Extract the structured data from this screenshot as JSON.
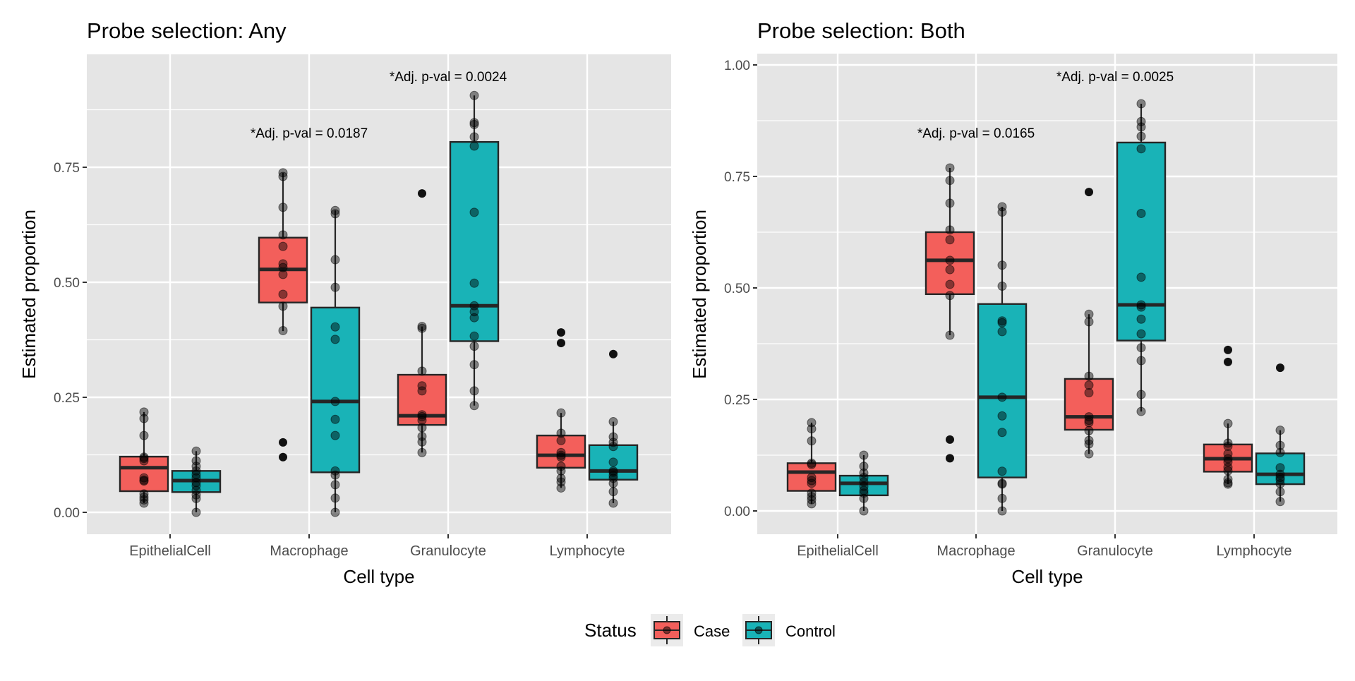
{
  "chart_data": [
    {
      "type": "box",
      "title": "Probe selection: Any",
      "xlabel": "Cell type",
      "ylabel": "Estimated proportion",
      "ylim": [
        -0.05,
        1.0
      ],
      "yticks": [
        0.0,
        0.25,
        0.5,
        0.75
      ],
      "ytick_labels": [
        "0.00",
        "0.25",
        "0.50",
        "0.75"
      ],
      "grid": true,
      "categories": [
        "EpithelialCell",
        "Macrophage",
        "Granulocyte",
        "Lymphocyte"
      ],
      "annotations": [
        {
          "text": "*Adj. p-val = 0.0187",
          "category": "Macrophage",
          "y": 0.825
        },
        {
          "text": "*Adj. p-val = 0.0024",
          "category": "Granulocyte",
          "y": 0.948
        }
      ],
      "series": [
        {
          "name": "Case",
          "boxes": [
            {
              "category": "EpithelialCell",
              "q1": 0.046,
              "median": 0.097,
              "q3": 0.121,
              "whisker_low": 0.02,
              "whisker_high": 0.218,
              "outliers": [],
              "points": [
                0.218,
                0.204,
                0.167,
                0.12,
                0.117,
                0.112,
                0.075,
                0.07,
                0.068,
                0.04,
                0.033,
                0.027,
                0.02
              ]
            },
            {
              "category": "Macrophage",
              "q1": 0.456,
              "median": 0.528,
              "q3": 0.597,
              "whisker_low": 0.394,
              "whisker_high": 0.738,
              "outliers": [
                0.152,
                0.12
              ],
              "points": [
                0.738,
                0.73,
                0.663,
                0.603,
                0.578,
                0.54,
                0.532,
                0.517,
                0.474,
                0.448,
                0.395
              ]
            },
            {
              "category": "Granulocyte",
              "q1": 0.19,
              "median": 0.21,
              "q3": 0.299,
              "whisker_low": 0.13,
              "whisker_high": 0.404,
              "outliers": [
                0.693
              ],
              "points": [
                0.404,
                0.4,
                0.307,
                0.275,
                0.264,
                0.212,
                0.208,
                0.2,
                0.184,
                0.165,
                0.153,
                0.13
              ]
            },
            {
              "category": "Lymphocyte",
              "q1": 0.097,
              "median": 0.124,
              "q3": 0.167,
              "whisker_low": 0.053,
              "whisker_high": 0.216,
              "outliers": [
                0.391,
                0.368
              ],
              "points": [
                0.216,
                0.172,
                0.156,
                0.13,
                0.124,
                0.12,
                0.1,
                0.09,
                0.074,
                0.066,
                0.053
              ]
            }
          ]
        },
        {
          "name": "Control",
          "boxes": [
            {
              "category": "EpithelialCell",
              "q1": 0.044,
              "median": 0.069,
              "q3": 0.09,
              "whisker_low": 0.0,
              "whisker_high": 0.133,
              "outliers": [],
              "points": [
                0.133,
                0.112,
                0.1,
                0.09,
                0.082,
                0.075,
                0.065,
                0.058,
                0.048,
                0.038,
                0.03,
                0.0
              ]
            },
            {
              "category": "Macrophage",
              "q1": 0.087,
              "median": 0.241,
              "q3": 0.445,
              "whisker_low": 0.0,
              "whisker_high": 0.656,
              "outliers": [],
              "points": [
                0.656,
                0.649,
                0.549,
                0.489,
                0.403,
                0.376,
                0.241,
                0.202,
                0.167,
                0.09,
                0.081,
                0.06,
                0.031,
                0.0
              ]
            },
            {
              "category": "Granulocyte",
              "q1": 0.372,
              "median": 0.449,
              "q3": 0.805,
              "whisker_low": 0.232,
              "whisker_high": 0.906,
              "outliers": [],
              "points": [
                0.906,
                0.847,
                0.843,
                0.816,
                0.796,
                0.652,
                0.498,
                0.449,
                0.436,
                0.423,
                0.383,
                0.361,
                0.321,
                0.264,
                0.232
              ]
            },
            {
              "category": "Lymphocyte",
              "q1": 0.071,
              "median": 0.09,
              "q3": 0.146,
              "whisker_low": 0.02,
              "whisker_high": 0.197,
              "outliers": [
                0.344
              ],
              "points": [
                0.197,
                0.164,
                0.152,
                0.143,
                0.109,
                0.09,
                0.087,
                0.08,
                0.074,
                0.063,
                0.045,
                0.02
              ]
            }
          ]
        }
      ]
    },
    {
      "type": "box",
      "title": "Probe selection: Both",
      "xlabel": "Cell type",
      "ylabel": "Estimated proportion",
      "ylim": [
        -0.05,
        1.025
      ],
      "yticks": [
        0.0,
        0.25,
        0.5,
        0.75,
        1.0
      ],
      "ytick_labels": [
        "0.00",
        "0.25",
        "0.50",
        "0.75",
        "1.00"
      ],
      "grid": true,
      "categories": [
        "EpithelialCell",
        "Macrophage",
        "Granulocyte",
        "Lymphocyte"
      ],
      "annotations": [
        {
          "text": "*Adj. p-val = 0.0165",
          "category": "Macrophage",
          "y": 0.848
        },
        {
          "text": "*Adj. p-val = 0.0025",
          "category": "Granulocyte",
          "y": 0.975
        }
      ],
      "series": [
        {
          "name": "Case",
          "boxes": [
            {
              "category": "EpithelialCell",
              "q1": 0.045,
              "median": 0.087,
              "q3": 0.107,
              "whisker_low": 0.016,
              "whisker_high": 0.198,
              "outliers": [],
              "points": [
                0.198,
                0.184,
                0.157,
                0.107,
                0.104,
                0.075,
                0.068,
                0.062,
                0.04,
                0.032,
                0.025,
                0.016
              ]
            },
            {
              "category": "Macrophage",
              "q1": 0.486,
              "median": 0.562,
              "q3": 0.625,
              "whisker_low": 0.394,
              "whisker_high": 0.769,
              "outliers": [
                0.16,
                0.118
              ],
              "points": [
                0.769,
                0.741,
                0.69,
                0.63,
                0.608,
                0.562,
                0.541,
                0.508,
                0.483,
                0.394
              ]
            },
            {
              "category": "Granulocyte",
              "q1": 0.182,
              "median": 0.211,
              "q3": 0.296,
              "whisker_low": 0.128,
              "whisker_high": 0.441,
              "outliers": [
                0.715
              ],
              "points": [
                0.441,
                0.424,
                0.302,
                0.282,
                0.265,
                0.211,
                0.203,
                0.198,
                0.18,
                0.158,
                0.15,
                0.128
              ]
            },
            {
              "category": "Lymphocyte",
              "q1": 0.088,
              "median": 0.117,
              "q3": 0.149,
              "whisker_low": 0.06,
              "whisker_high": 0.196,
              "outliers": [
                0.361,
                0.334
              ],
              "points": [
                0.196,
                0.152,
                0.145,
                0.128,
                0.117,
                0.11,
                0.098,
                0.09,
                0.071,
                0.063,
                0.06
              ]
            }
          ]
        },
        {
          "name": "Control",
          "boxes": [
            {
              "category": "EpithelialCell",
              "q1": 0.035,
              "median": 0.062,
              "q3": 0.079,
              "whisker_low": 0.0,
              "whisker_high": 0.125,
              "outliers": [],
              "points": [
                0.125,
                0.1,
                0.085,
                0.075,
                0.065,
                0.055,
                0.046,
                0.04,
                0.028,
                0.0
              ]
            },
            {
              "category": "Macrophage",
              "q1": 0.075,
              "median": 0.255,
              "q3": 0.464,
              "whisker_low": 0.0,
              "whisker_high": 0.682,
              "outliers": [],
              "points": [
                0.682,
                0.67,
                0.551,
                0.504,
                0.426,
                0.422,
                0.402,
                0.255,
                0.213,
                0.176,
                0.089,
                0.062,
                0.06,
                0.028,
                0.0
              ]
            },
            {
              "category": "Granulocyte",
              "q1": 0.382,
              "median": 0.462,
              "q3": 0.826,
              "whisker_low": 0.223,
              "whisker_high": 0.913,
              "outliers": [],
              "points": [
                0.913,
                0.873,
                0.861,
                0.84,
                0.812,
                0.667,
                0.524,
                0.462,
                0.457,
                0.43,
                0.397,
                0.366,
                0.337,
                0.261,
                0.223
              ]
            },
            {
              "category": "Lymphocyte",
              "q1": 0.06,
              "median": 0.082,
              "q3": 0.129,
              "whisker_low": 0.021,
              "whisker_high": 0.181,
              "outliers": [
                0.321
              ],
              "points": [
                0.181,
                0.147,
                0.131,
                0.097,
                0.082,
                0.075,
                0.07,
                0.061,
                0.043,
                0.021
              ]
            }
          ]
        }
      ]
    }
  ],
  "legend": {
    "title": "Status",
    "placement": "bottom",
    "items": [
      {
        "label": "Case",
        "color": "#F8766D"
      },
      {
        "label": "Control",
        "color": "#00BFC4"
      }
    ]
  },
  "colors": {
    "Case": "#F35F5B",
    "Control": "#19B3B7",
    "panel_bg": "#E5E5E5",
    "grid": "#FFFFFF",
    "box_line": "#262626",
    "legend_key_bg": "#EBEBEB"
  }
}
